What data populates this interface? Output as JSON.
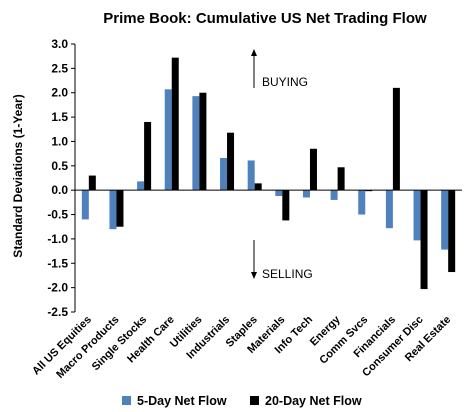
{
  "chart_data": {
    "type": "bar",
    "title": "Prime Book: Cumulative US Net Trading Flow",
    "ylabel": "Standard Deviations (1-Year)",
    "xlabel": "",
    "ylim": [
      -2.5,
      3.0
    ],
    "yticks": [
      3.0,
      2.5,
      2.0,
      1.5,
      1.0,
      0.5,
      0.0,
      -0.5,
      -1.0,
      -1.5,
      -2.0,
      -2.5
    ],
    "ytick_labels": [
      "3.0",
      "2.5",
      "2.0",
      "1.5",
      "1.0",
      "0.5",
      "0.0",
      "-0.5",
      "-1.0",
      "-1.5",
      "-2.0",
      "-2.5"
    ],
    "grid": false,
    "legend_position": "bottom",
    "categories": [
      "All US Equities",
      "Macro Products",
      "Single Stocks",
      "Health Care",
      "Utilities",
      "Industrials",
      "Staples",
      "Materials",
      "Info Tech",
      "Energy",
      "Comm Svcs",
      "Financials",
      "Consumer Disc",
      "Real Estate"
    ],
    "series": [
      {
        "name": "5-Day Net Flow",
        "color": "#4f81bd",
        "values": [
          -0.6,
          -0.8,
          0.18,
          2.07,
          1.93,
          0.66,
          0.61,
          -0.12,
          -0.15,
          -0.2,
          -0.5,
          -0.78,
          -1.03,
          -1.22
        ]
      },
      {
        "name": "20-Day Net Flow",
        "color": "#000000",
        "values": [
          0.3,
          -0.75,
          1.4,
          2.72,
          2.0,
          1.18,
          0.14,
          -0.62,
          0.85,
          0.47,
          -0.02,
          2.1,
          -2.03,
          -1.68
        ]
      }
    ],
    "annotations": [
      {
        "text": "BUYING",
        "arrow": "up"
      },
      {
        "text": "SELLING",
        "arrow": "down"
      }
    ]
  }
}
